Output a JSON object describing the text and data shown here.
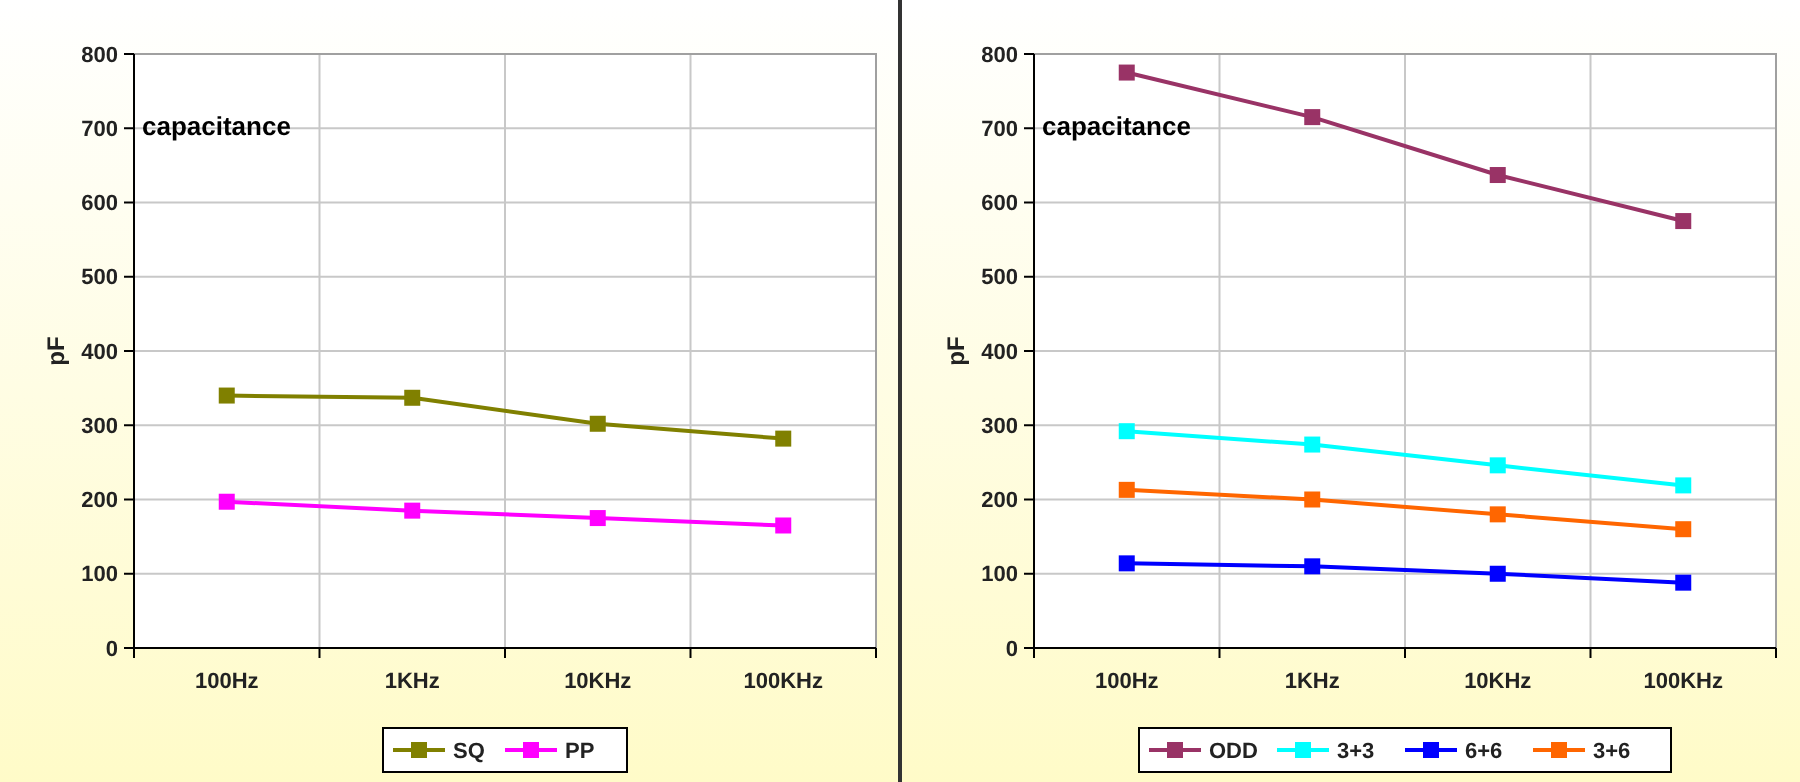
{
  "chart_data": [
    {
      "type": "line",
      "title": "capacitance",
      "ylabel": "pF",
      "categories": [
        "100Hz",
        "1KHz",
        "10KHz",
        "100KHz"
      ],
      "series": [
        {
          "name": "SQ",
          "color": "#808000",
          "values": [
            340,
            337,
            302,
            282
          ]
        },
        {
          "name": "PP",
          "color": "#ff00ff",
          "values": [
            197,
            185,
            175,
            165
          ]
        }
      ],
      "ylim": [
        0,
        800
      ],
      "yticks": [
        0,
        100,
        200,
        300,
        400,
        500,
        600,
        700,
        800
      ],
      "grid": true,
      "legend": "bottom",
      "marker": "square",
      "line_style": "solid"
    },
    {
      "type": "line",
      "title": "capacitance",
      "ylabel": "pF",
      "categories": [
        "100Hz",
        "1KHz",
        "10KHz",
        "100KHz"
      ],
      "series": [
        {
          "name": "ODD",
          "color": "#993366",
          "values": [
            775,
            715,
            637,
            575
          ]
        },
        {
          "name": "3+3",
          "color": "#00ffff",
          "values": [
            292,
            274,
            246,
            219
          ]
        },
        {
          "name": "6+6",
          "color": "#0000ff",
          "values": [
            114,
            110,
            100,
            88
          ]
        },
        {
          "name": "3+6",
          "color": "#ff6600",
          "values": [
            213,
            200,
            180,
            160
          ]
        }
      ],
      "ylim": [
        0,
        800
      ],
      "yticks": [
        0,
        100,
        200,
        300,
        400,
        500,
        600,
        700,
        800
      ],
      "grid": true,
      "legend": "bottom",
      "marker": "square",
      "line_style": "solid"
    }
  ]
}
